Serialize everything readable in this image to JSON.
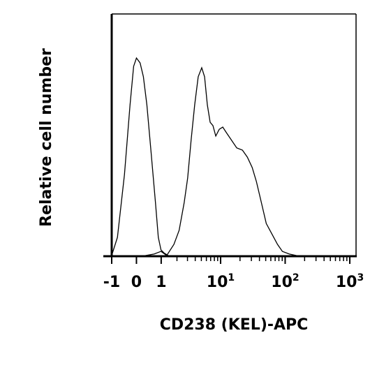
{
  "chart_data": {
    "type": "histogram-overlay",
    "xlabel": "CD238 (KEL)-APC",
    "ylabel": "Relative cell number",
    "xscale": "asinh",
    "xlim": [
      -1,
      1250
    ],
    "ylim": [
      0,
      100
    ],
    "xticks": [
      -1,
      0,
      1,
      {
        "value": 10,
        "label": "10",
        "exponent": "1"
      },
      {
        "value": 100,
        "label": "10",
        "exponent": "2"
      },
      {
        "value": 1000,
        "label": "10",
        "exponent": "3"
      }
    ],
    "minor_xticks": [
      2,
      3,
      4,
      5,
      6,
      7,
      8,
      9,
      20,
      30,
      40,
      50,
      60,
      70,
      80,
      90,
      200,
      300,
      400,
      500,
      600,
      700,
      800,
      900
    ],
    "series": [
      {
        "color": "#000000",
        "x": [
          -0.99,
          -0.73,
          -0.44,
          -0.23,
          -0.1,
          0,
          0.13,
          0.25,
          0.38,
          0.55,
          0.73,
          0.86,
          0.99,
          1.14,
          1.38
        ],
        "values": [
          0.6,
          7.8,
          33.7,
          62.5,
          78.4,
          81.8,
          79.8,
          74.1,
          62.5,
          42.4,
          22.2,
          7.8,
          2.6,
          1.4,
          0.3
        ]
      },
      {
        "color": "#000000",
        "x": [
          0.33,
          0.67,
          0.99,
          1.3,
          1.77,
          2.18,
          2.65,
          3.02,
          3.44,
          3.92,
          4.46,
          5.07,
          5.62,
          6.21,
          6.87,
          7.6,
          8.41,
          9.53,
          10.8,
          12.3,
          14.6,
          17.8,
          21.8,
          26.0,
          30.9,
          35.9,
          42.8,
          51.0,
          62.3,
          76.1,
          90.6,
          116,
          149
        ],
        "values": [
          0.3,
          0.9,
          2.0,
          0.3,
          4.9,
          10.7,
          22.2,
          32.3,
          48.1,
          62.5,
          74.1,
          77.8,
          74.1,
          62.5,
          55.3,
          53.9,
          49.6,
          52.4,
          53.3,
          51.0,
          48.1,
          44.7,
          43.8,
          40.9,
          36.6,
          30.8,
          22.2,
          13.5,
          9.2,
          4.9,
          2.0,
          0.9,
          0.3
        ]
      }
    ]
  }
}
